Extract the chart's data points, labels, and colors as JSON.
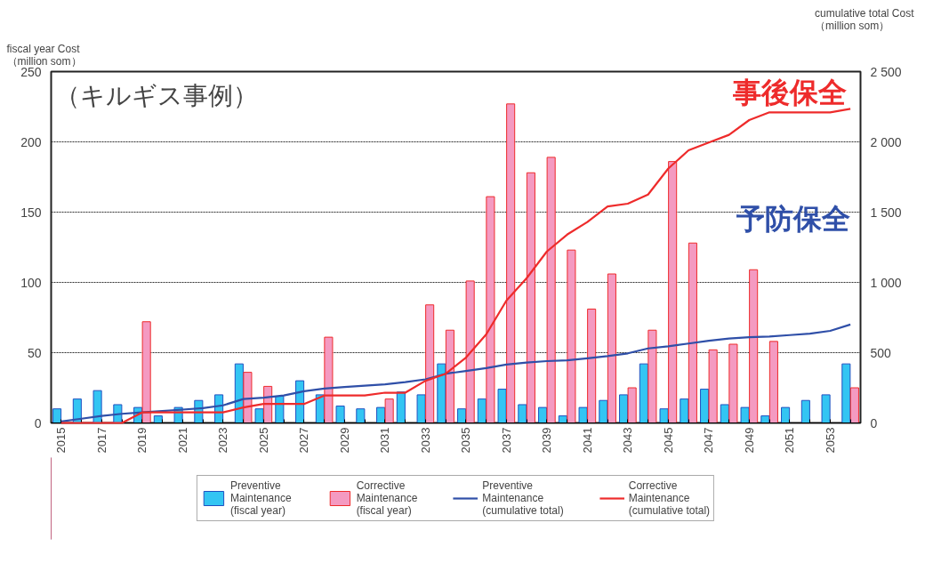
{
  "chart_data": {
    "type": "bar",
    "categories": [
      "2015",
      null,
      "2017",
      null,
      "2019",
      null,
      "2021",
      null,
      "2023",
      null,
      "2025",
      null,
      "2027",
      null,
      "2029",
      null,
      "2031",
      null,
      "2033",
      null,
      "2035",
      null,
      "2037",
      null,
      "2039",
      null,
      "2041",
      null,
      "2043",
      null,
      "2045",
      null,
      "2047",
      null,
      "2049",
      null,
      "2051",
      null,
      "2053",
      null
    ],
    "ylabel": "fiscal year Cost\n（million som）",
    "y2label": "cumulative total Cost\n（million som）",
    "ylim": [
      0,
      250
    ],
    "yticks": [
      0,
      50,
      100,
      150,
      200,
      250
    ],
    "y2lim": [
      0,
      2500
    ],
    "y2ticks": [
      0,
      {
        "value": 500,
        "label": "500"
      },
      {
        "value": 1000,
        "label": "1 000"
      },
      {
        "value": 1500,
        "label": "1 500"
      },
      {
        "value": 2000,
        "label": "2 000"
      },
      {
        "value": 2500,
        "label": "2 500"
      }
    ],
    "grid": "y",
    "legend": "bottom",
    "annotations": [
      "（キルギス事例）",
      "事後保全",
      "予防保全"
    ],
    "series": [
      {
        "name": "Preventive\nMaintenance\n(fiscal year)",
        "color": "#33c5f3",
        "values": [
          10,
          17,
          23,
          13,
          11,
          5,
          11,
          16,
          20,
          42,
          10,
          19,
          30,
          20,
          12,
          10,
          11,
          22,
          20,
          42,
          10,
          17,
          24,
          13,
          11,
          5,
          11,
          16,
          20,
          42,
          10,
          17,
          24,
          13,
          11,
          5,
          11,
          16,
          20,
          42
        ]
      },
      {
        "name": "Corrective\nMaintenance\n(fiscal year)",
        "color": "#f49ac1",
        "values": [
          null,
          null,
          null,
          null,
          72,
          null,
          null,
          null,
          null,
          36,
          26,
          null,
          null,
          61,
          null,
          null,
          17,
          null,
          84,
          66,
          101,
          161,
          227,
          178,
          189,
          123,
          81,
          106,
          25,
          66,
          186,
          128,
          52,
          56,
          109,
          58,
          null,
          null,
          null,
          25
        ]
      },
      {
        "name": "Preventive\nMaintenance\n(cumulative total)",
        "type": "line",
        "axis": "y2",
        "color": "#2f4fa8",
        "values": [
          10,
          30,
          50,
          65,
          75,
          85,
          95,
          105,
          125,
          170,
          180,
          195,
          225,
          245,
          255,
          265,
          275,
          290,
          310,
          350,
          370,
          390,
          415,
          430,
          440,
          445,
          460,
          475,
          495,
          530,
          545,
          565,
          585,
          600,
          610,
          615,
          625,
          635,
          655,
          700
        ]
      },
      {
        "name": "Corrective\nMaintenance\n(cumulative total)",
        "type": "line",
        "axis": "y2",
        "color": "#ee2b2b",
        "values": [
          0,
          0,
          0,
          0,
          75,
          75,
          75,
          75,
          75,
          110,
          135,
          135,
          135,
          195,
          195,
          195,
          215,
          215,
          300,
          350,
          465,
          630,
          870,
          1030,
          1220,
          1340,
          1430,
          1540,
          1560,
          1625,
          1810,
          1940,
          1995,
          2050,
          2155,
          2210,
          2210,
          2210,
          2210,
          2235
        ]
      }
    ]
  }
}
